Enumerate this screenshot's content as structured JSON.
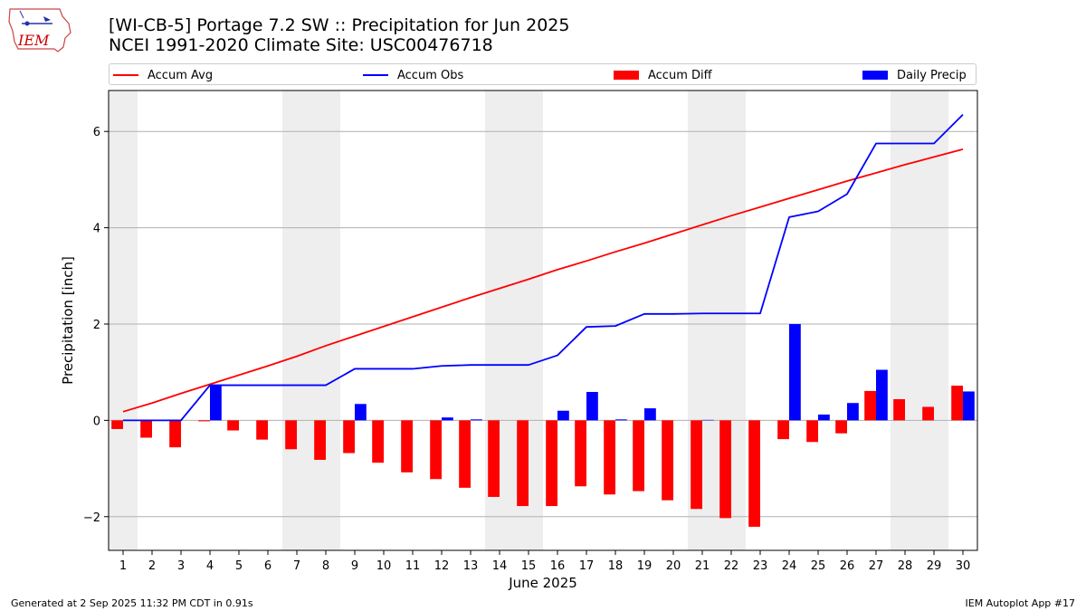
{
  "header": {
    "title_line1": "[WI-CB-5] Portage 7.2 SW :: Precipitation for Jun 2025",
    "title_line2": "NCEI 1991-2020 Climate Site: USC00476718"
  },
  "logo": {
    "text": "IEM",
    "color": "#cc0000"
  },
  "legend": {
    "placement": "top (above plot, horizontal)",
    "items": [
      {
        "label": "Accum Avg",
        "kind": "line",
        "color": "#ff0000"
      },
      {
        "label": "Accum Obs",
        "kind": "line",
        "color": "#0000ff"
      },
      {
        "label": "Accum Diff",
        "kind": "bar",
        "color": "#ff0000"
      },
      {
        "label": "Daily Precip",
        "kind": "bar",
        "color": "#0000ff"
      }
    ]
  },
  "footer": {
    "left": "Generated at 2 Sep 2025 11:32 PM CDT in 0.91s",
    "right": "IEM Autoplot App #17"
  },
  "chart_data": {
    "type": "bar",
    "title": "[WI-CB-5] Portage 7.2 SW :: Precipitation for Jun 2025",
    "subtitle": "NCEI 1991-2020 Climate Site: USC00476718",
    "xlabel": "June 2025",
    "ylabel": "Precipitation [inch]",
    "x": [
      1,
      2,
      3,
      4,
      5,
      6,
      7,
      8,
      9,
      10,
      11,
      12,
      13,
      14,
      15,
      16,
      17,
      18,
      19,
      20,
      21,
      22,
      23,
      24,
      25,
      26,
      27,
      28,
      29,
      30
    ],
    "xlim": [
      0.5,
      30.5
    ],
    "ylim": [
      -2.7,
      6.85
    ],
    "yticks": [
      -2,
      0,
      2,
      4,
      6
    ],
    "grid": "horizontal",
    "weekend_shading": [
      [
        0.5,
        1.5
      ],
      [
        6.5,
        8.5
      ],
      [
        13.5,
        15.5
      ],
      [
        20.5,
        22.5
      ],
      [
        27.5,
        29.5
      ]
    ],
    "series": [
      {
        "name": "Accum Avg",
        "kind": "line",
        "color": "#ff0000",
        "values": [
          0.18,
          0.36,
          0.56,
          0.75,
          0.94,
          1.13,
          1.33,
          1.55,
          1.75,
          1.95,
          2.15,
          2.35,
          2.55,
          2.74,
          2.93,
          3.13,
          3.31,
          3.5,
          3.68,
          3.87,
          4.06,
          4.25,
          4.43,
          4.61,
          4.79,
          4.97,
          5.14,
          5.31,
          5.47,
          5.63
        ]
      },
      {
        "name": "Accum Obs",
        "kind": "line",
        "color": "#0000ff",
        "values": [
          0.0,
          0.0,
          0.0,
          0.73,
          0.73,
          0.73,
          0.73,
          0.73,
          1.07,
          1.07,
          1.07,
          1.13,
          1.15,
          1.15,
          1.15,
          1.35,
          1.94,
          1.96,
          2.21,
          2.21,
          2.22,
          2.22,
          2.22,
          4.22,
          4.34,
          4.7,
          5.75,
          5.75,
          5.75,
          6.35
        ]
      },
      {
        "name": "Accum Diff",
        "kind": "bar",
        "color": "#ff0000",
        "values": [
          -0.18,
          -0.36,
          -0.56,
          -0.02,
          -0.21,
          -0.4,
          -0.6,
          -0.82,
          -0.68,
          -0.88,
          -1.08,
          -1.22,
          -1.4,
          -1.59,
          -1.78,
          -1.78,
          -1.37,
          -1.54,
          -1.47,
          -1.66,
          -1.84,
          -2.03,
          -2.21,
          -0.39,
          -0.45,
          -0.27,
          0.61,
          0.44,
          0.28,
          0.72
        ]
      },
      {
        "name": "Daily Precip",
        "kind": "bar",
        "color": "#0000ff",
        "values": [
          0.0,
          0.0,
          0.0,
          0.73,
          0.0,
          0.0,
          0.0,
          0.0,
          0.34,
          0.0,
          0.0,
          0.06,
          0.02,
          0.0,
          0.0,
          0.2,
          0.59,
          0.02,
          0.25,
          0.0,
          0.01,
          0.0,
          0.0,
          2.0,
          0.12,
          0.36,
          1.05,
          0.0,
          0.0,
          0.6
        ]
      }
    ]
  }
}
